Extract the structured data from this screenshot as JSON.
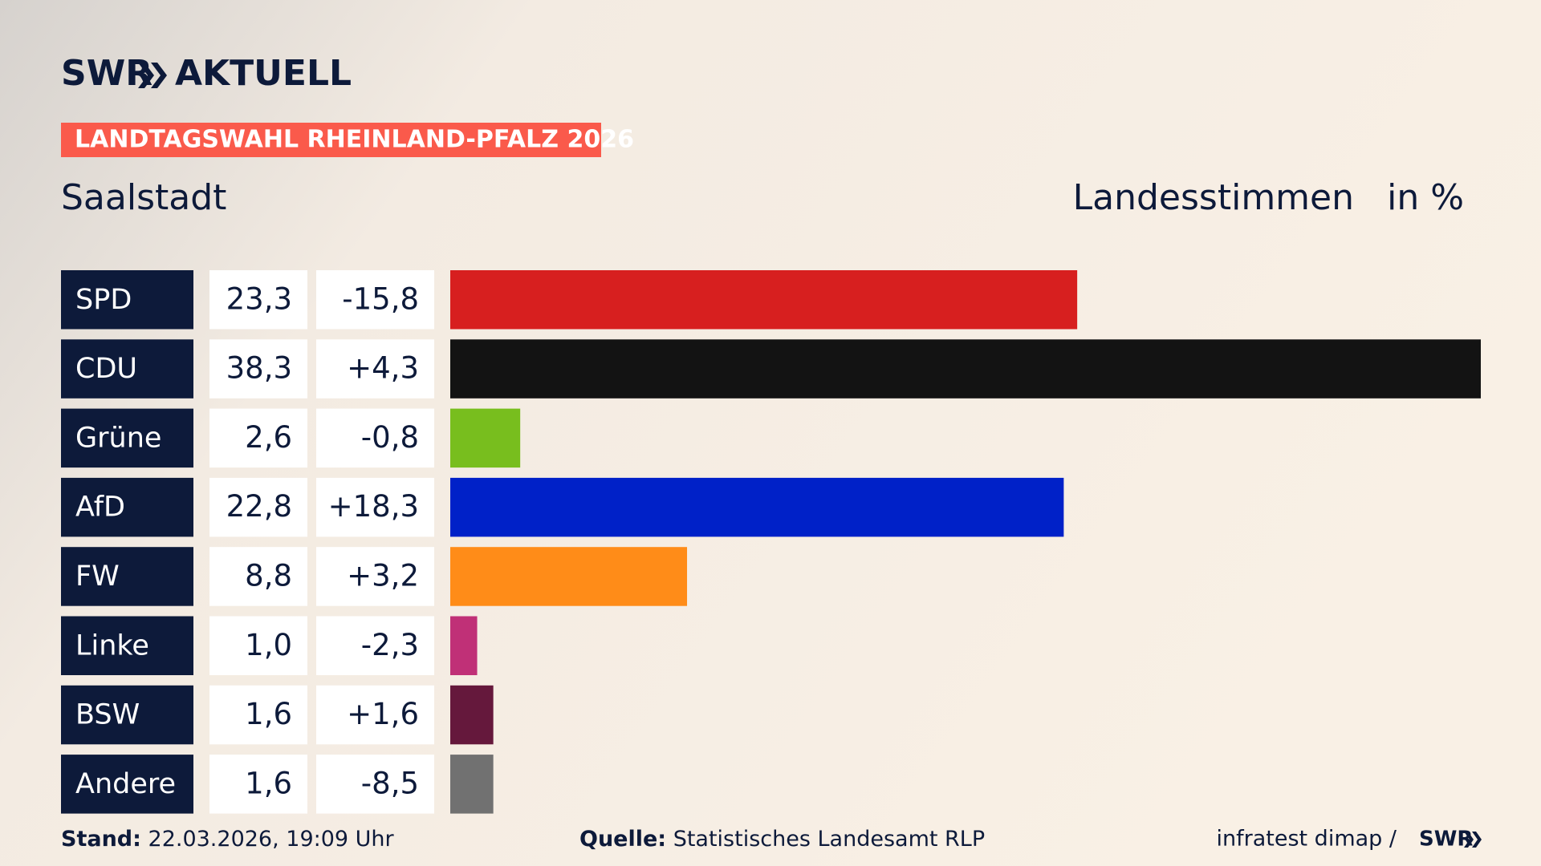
{
  "chart_data": {
    "type": "bar",
    "brand": "SWR",
    "brand_section": "AKTUELL",
    "title": "LANDTAGSWAHL RHEINLAND-PFALZ 2026",
    "subtitle": "Saalstadt",
    "measure": "Landesstimmen",
    "unit": "in %",
    "categories": [
      "SPD",
      "CDU",
      "Grüne",
      "AfD",
      "FW",
      "Linke",
      "BSW",
      "Andere"
    ],
    "values": [
      23.3,
      38.3,
      2.6,
      22.8,
      8.8,
      1.0,
      1.6,
      1.6
    ],
    "value_labels": [
      "23,3",
      "38,3",
      "2,6",
      "22,8",
      "8,8",
      "1,0",
      "1,6",
      "1,6"
    ],
    "changes": [
      -15.8,
      4.3,
      -0.8,
      18.3,
      3.2,
      -2.3,
      1.6,
      -8.5
    ],
    "change_labels": [
      "-15,8",
      "+4,3",
      "-0,8",
      "+18,3",
      "+3,2",
      "-2,3",
      "+1,6",
      "-8,5"
    ],
    "colors": [
      "#d71f1f",
      "#131313",
      "#78be1e",
      "#0021c8",
      "#ff8c18",
      "#c03077",
      "#65183c",
      "#717171"
    ],
    "stand_label": "Stand:",
    "stand": "22.03.2026, 19:09 Uhr",
    "source_label": "Quelle:",
    "source": "Statistisches Landesamt RLP",
    "credit": "infratest dimap /",
    "credit_brand": "SWR"
  }
}
